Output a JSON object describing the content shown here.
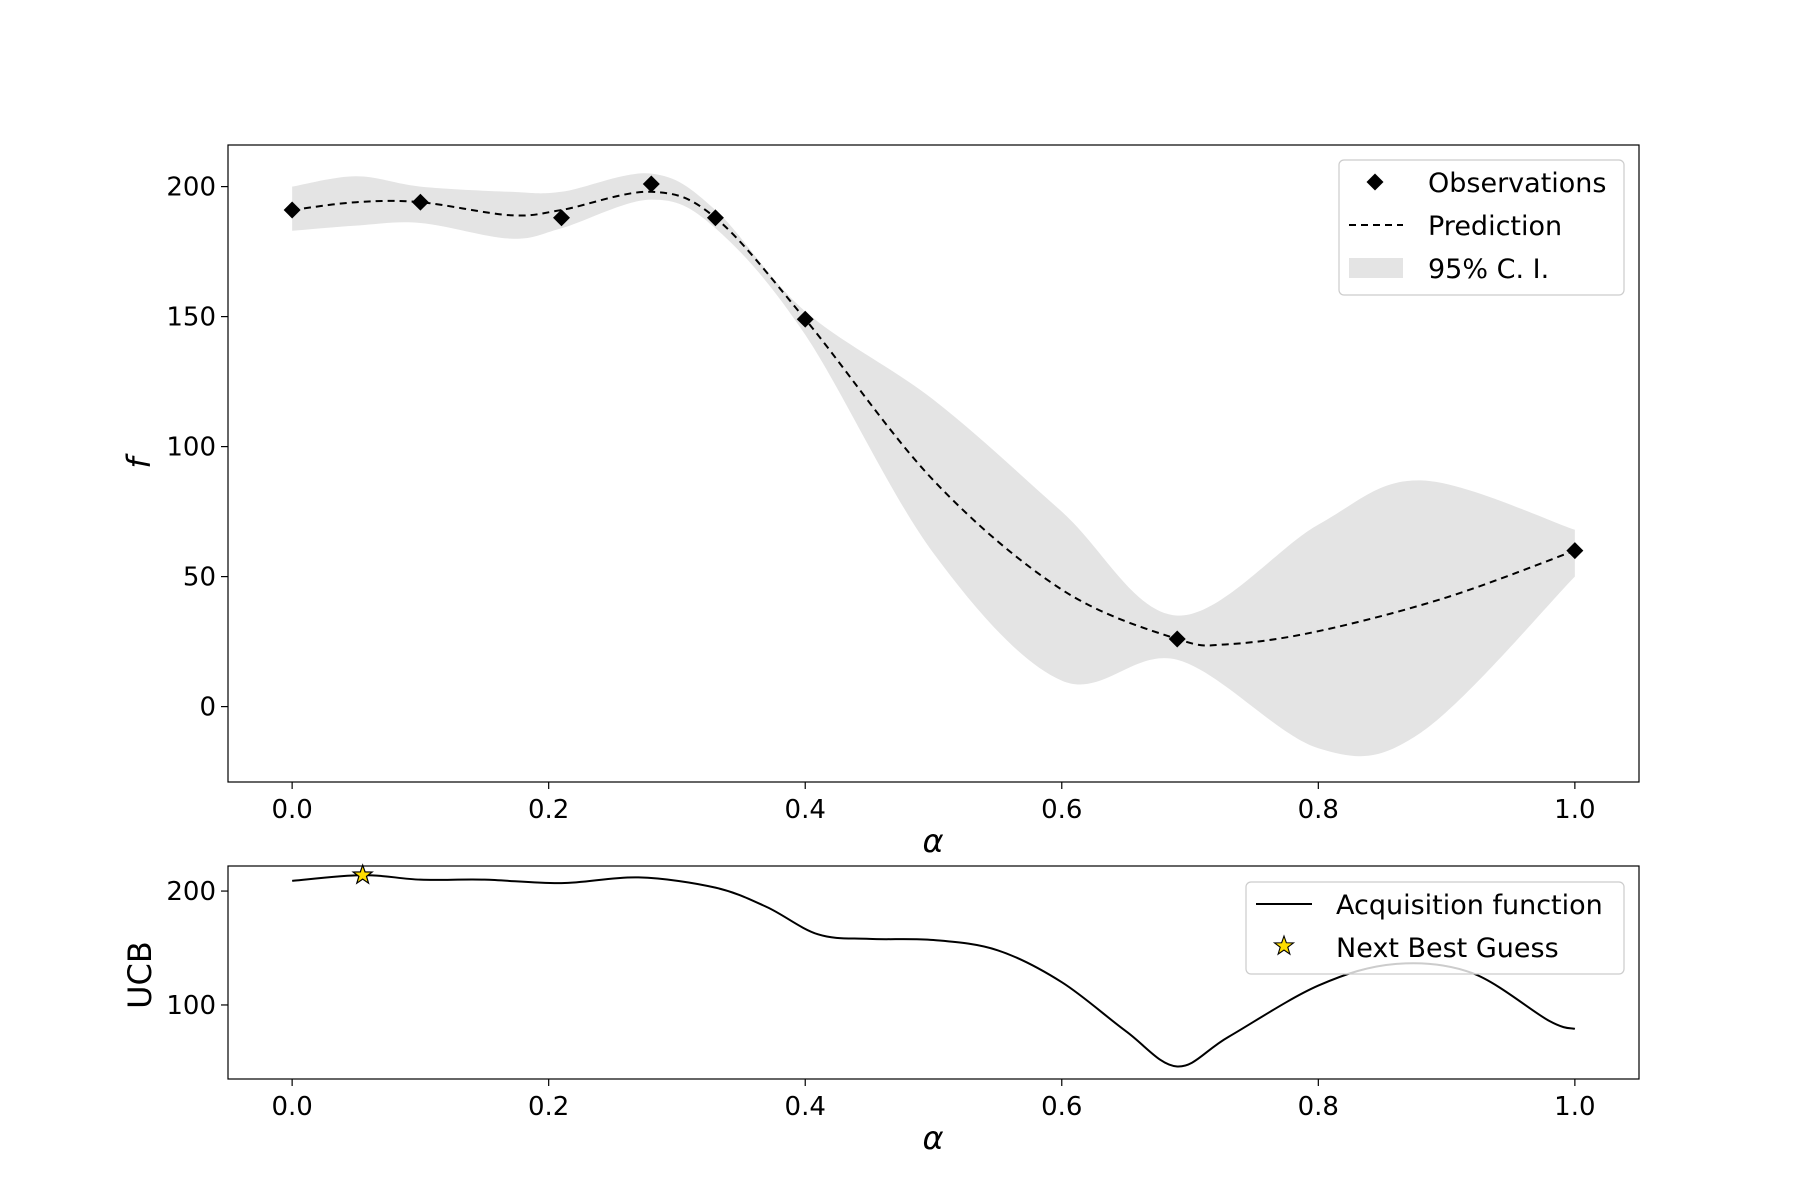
{
  "colors": {
    "ci_fill": "#e4e4e4",
    "line": "#000000",
    "star_fill": "#ffdd00",
    "frame": "#000000"
  },
  "chart_data": [
    {
      "type": "line",
      "xlabel": "α",
      "ylabel": "f",
      "xlim": [
        -0.05,
        1.05
      ],
      "ylim": [
        -29,
        216
      ],
      "x_ticks": [
        0.0,
        0.2,
        0.4,
        0.6,
        0.8,
        1.0
      ],
      "x_tick_labels": [
        "0.0",
        "0.2",
        "0.4",
        "0.6",
        "0.8",
        "1.0"
      ],
      "y_ticks": [
        0,
        50,
        100,
        150,
        200
      ],
      "y_tick_labels": [
        "0",
        "50",
        "100",
        "150",
        "200"
      ],
      "grid": false,
      "legend_position": "top-right",
      "legend": [
        "Observations",
        "Prediction",
        "95% C. I."
      ],
      "observations": {
        "x": [
          0.0,
          0.1,
          0.21,
          0.28,
          0.33,
          0.4,
          0.69,
          1.0
        ],
        "y": [
          191,
          194,
          188,
          201,
          188,
          149,
          26,
          60
        ]
      },
      "prediction": {
        "x": [
          0.0,
          0.05,
          0.1,
          0.17,
          0.21,
          0.28,
          0.33,
          0.4,
          0.5,
          0.6,
          0.69,
          0.73,
          0.8,
          0.9,
          1.0
        ],
        "y": [
          191,
          194,
          194,
          189,
          191,
          198,
          188,
          149,
          87,
          45,
          26,
          24,
          29,
          42,
          60
        ]
      },
      "ci": {
        "x": [
          0.0,
          0.05,
          0.1,
          0.17,
          0.21,
          0.28,
          0.33,
          0.4,
          0.5,
          0.6,
          0.69,
          0.8,
          0.88,
          1.0
        ],
        "upper": [
          200,
          204,
          200,
          198,
          198,
          205,
          191,
          152,
          118,
          75,
          35,
          70,
          87,
          68
        ],
        "lower": [
          183,
          185,
          186,
          180,
          184,
          195,
          184,
          143,
          59,
          10,
          18,
          -16,
          -10,
          50
        ]
      }
    },
    {
      "type": "line",
      "xlabel": "α",
      "ylabel": "UCB",
      "xlim": [
        -0.05,
        1.05
      ],
      "ylim": [
        35,
        222
      ],
      "x_ticks": [
        0.0,
        0.2,
        0.4,
        0.6,
        0.8,
        1.0
      ],
      "x_tick_labels": [
        "0.0",
        "0.2",
        "0.4",
        "0.6",
        "0.8",
        "1.0"
      ],
      "y_ticks": [
        100,
        200
      ],
      "y_tick_labels": [
        "100",
        "200"
      ],
      "grid": false,
      "legend_position": "top-right",
      "legend": [
        "Acquisition function",
        "Next Best Guess"
      ],
      "acquisition": {
        "x": [
          0.0,
          0.055,
          0.1,
          0.15,
          0.21,
          0.27,
          0.33,
          0.37,
          0.41,
          0.45,
          0.5,
          0.55,
          0.6,
          0.65,
          0.69,
          0.73,
          0.8,
          0.86,
          0.92,
          0.98,
          1.0
        ],
        "y": [
          209,
          214,
          210,
          210,
          207,
          212,
          203,
          186,
          162,
          158,
          157,
          148,
          120,
          77,
          46,
          72,
          117,
          136,
          128,
          86,
          79
        ]
      },
      "next_best_guess": {
        "x": 0.055,
        "y": 214
      }
    }
  ]
}
